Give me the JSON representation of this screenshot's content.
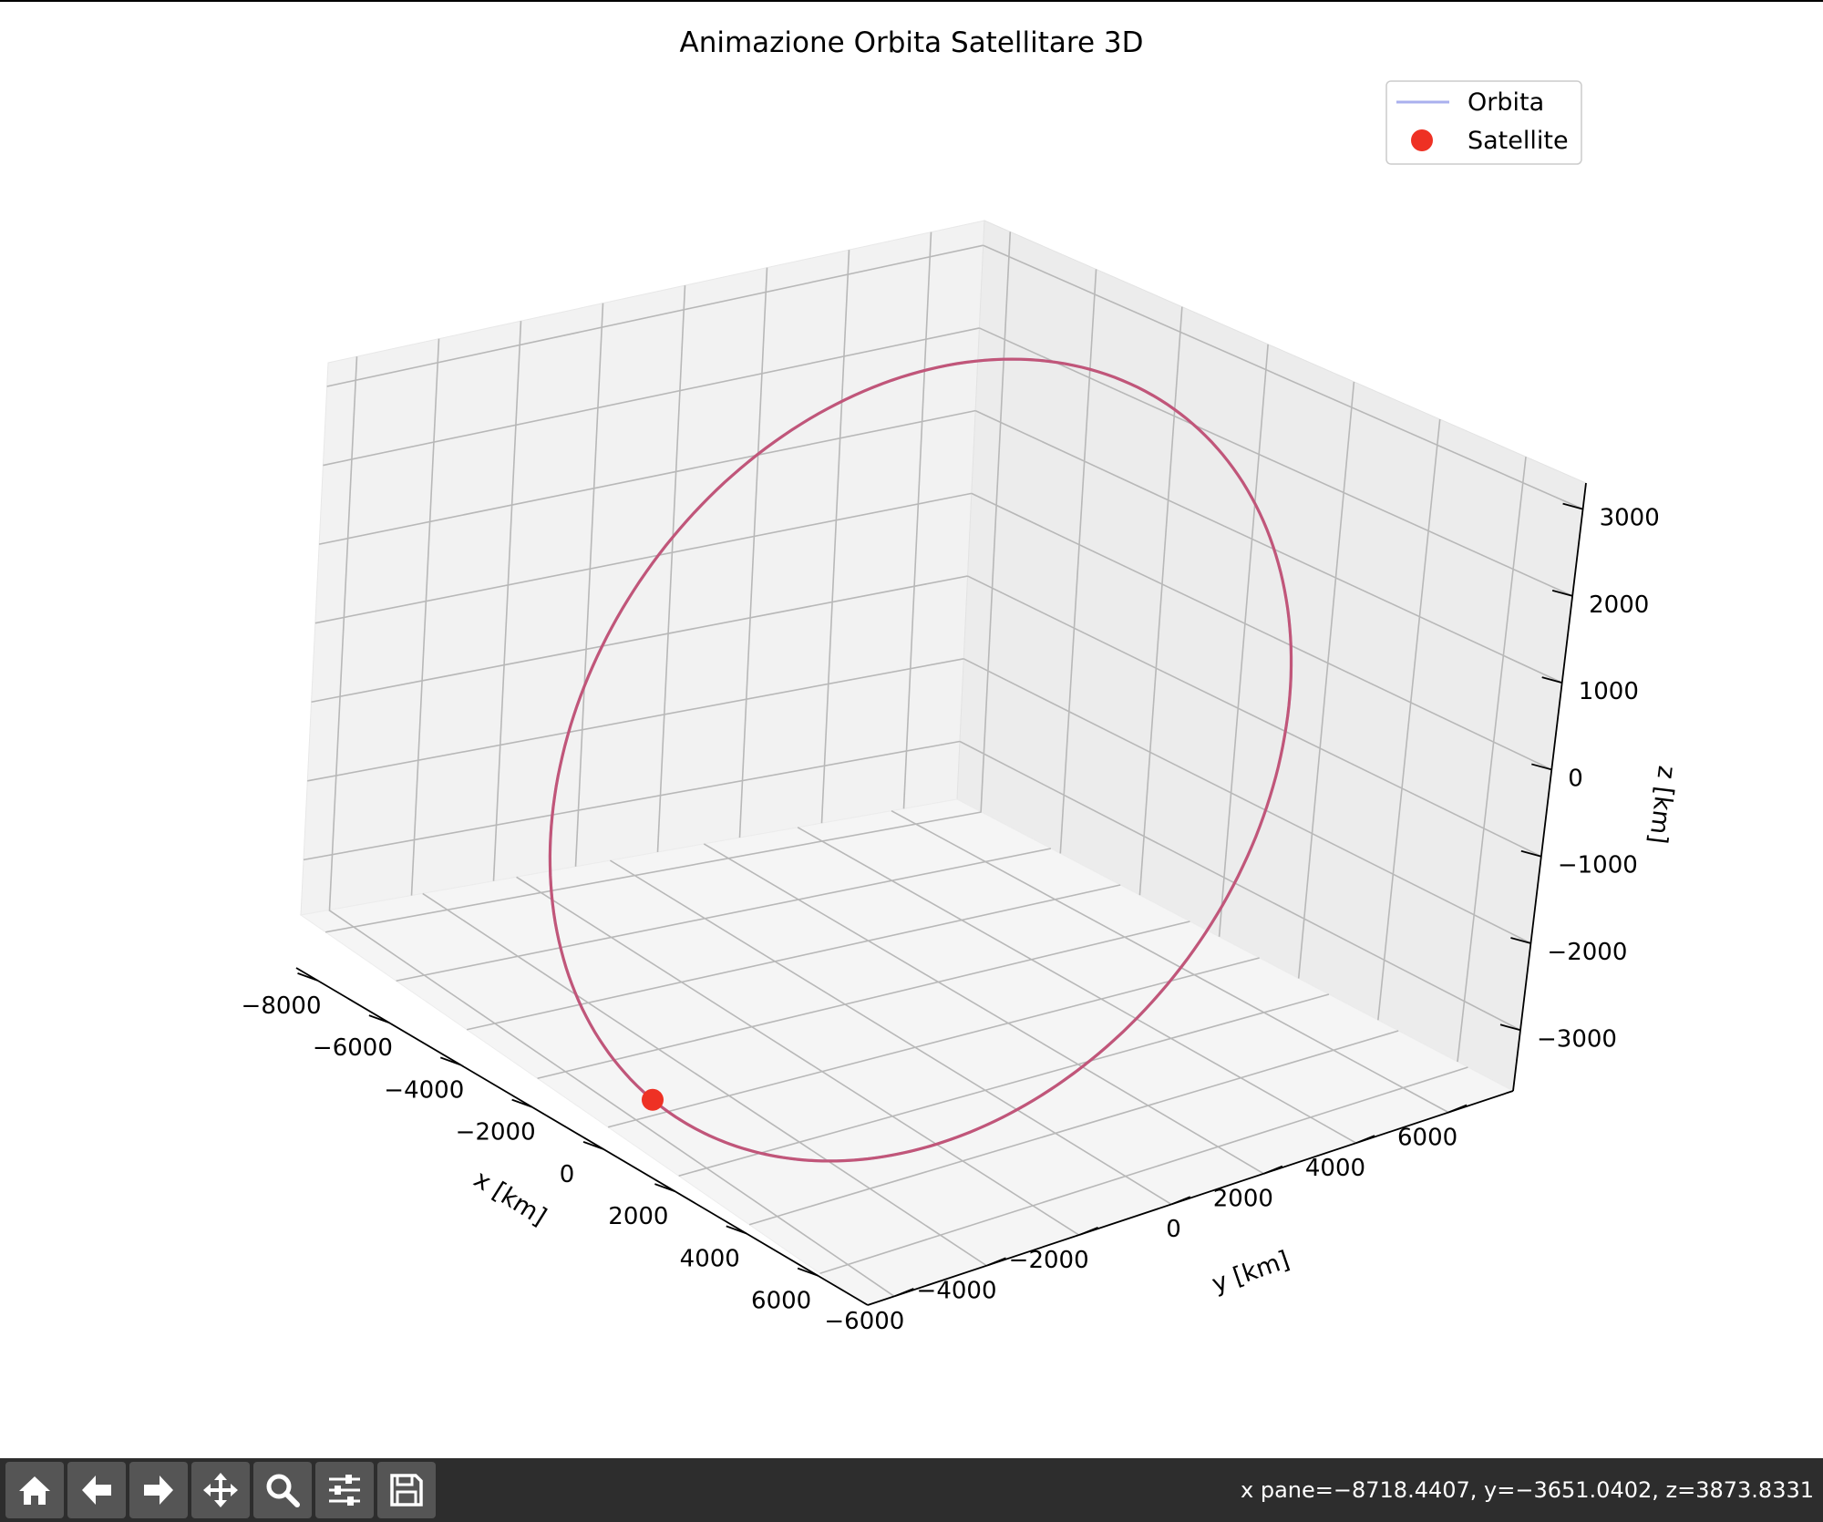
{
  "chart_data": {
    "type": "line3d",
    "title": "Animazione Orbita Satellitare 3D",
    "xlabel": "x [km]",
    "ylabel": "y [km]",
    "zlabel": "z [km]",
    "xticks": [
      "−8000",
      "−6000",
      "−4000",
      "−2000",
      "0",
      "2000",
      "4000",
      "6000"
    ],
    "yticks": [
      "−6000",
      "−4000",
      "−2000",
      "0",
      "2000",
      "4000",
      "6000"
    ],
    "zticks": [
      "3000",
      "2000",
      "1000",
      "0",
      "−1000",
      "−2000",
      "−3000"
    ],
    "grid": true,
    "legend_position": "top-right",
    "series": [
      {
        "name": "Orbita",
        "kind": "line",
        "color": "#aab0ee",
        "description": "full elliptical orbit path"
      },
      {
        "name": "Satellite",
        "kind": "marker",
        "color": "#ee3124",
        "description": "current satellite position"
      }
    ],
    "trail_color": "#c15679"
  },
  "toolbar": {
    "buttons": [
      {
        "icon": "home-icon"
      },
      {
        "icon": "back-arrow-icon"
      },
      {
        "icon": "forward-arrow-icon"
      },
      {
        "icon": "pan-move-icon"
      },
      {
        "icon": "zoom-magnifier-icon"
      },
      {
        "icon": "configure-subplots-icon"
      },
      {
        "icon": "save-floppy-icon"
      }
    ],
    "coordinates": "x pane=−8718.4407, y=−3651.0402, z=3873.8331"
  }
}
